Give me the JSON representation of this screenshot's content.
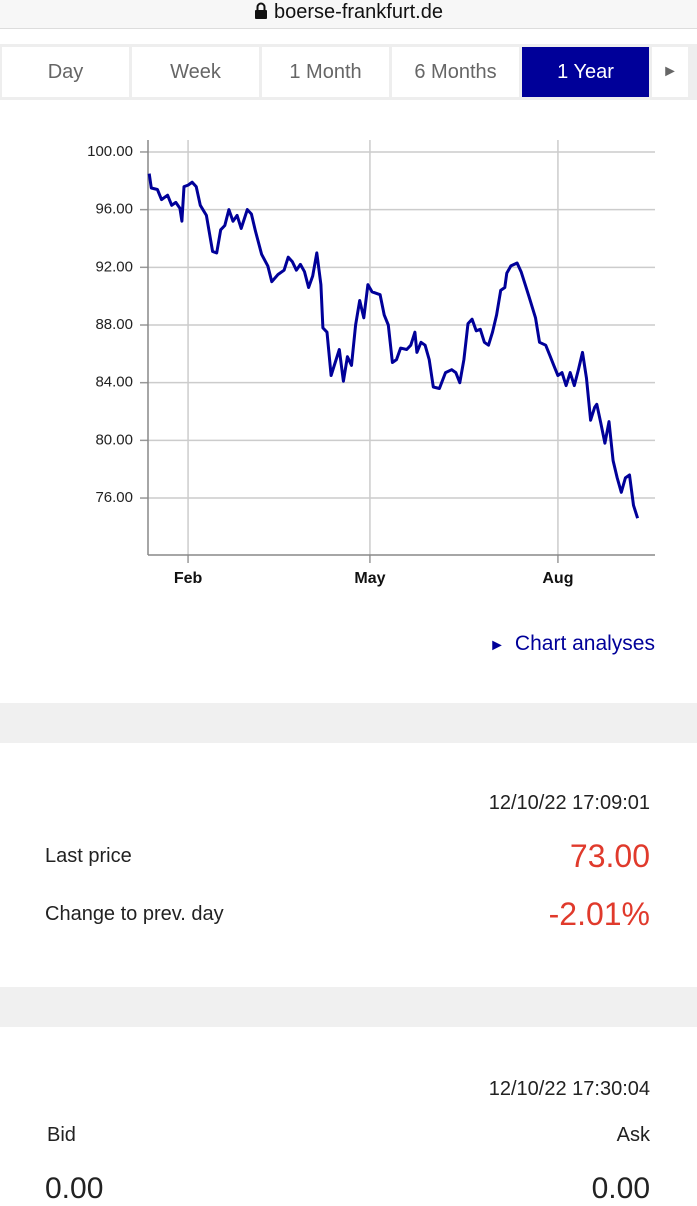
{
  "url": "boerse-frankfurt.de",
  "tabs": [
    "Day",
    "Week",
    "1 Month",
    "6 Months",
    "1 Year"
  ],
  "active_tab": 4,
  "chart_data": {
    "type": "line",
    "color": "#000099",
    "grid": true,
    "x": [
      13,
      14,
      17,
      19,
      22,
      24,
      26,
      28,
      29,
      30,
      32,
      34,
      36,
      38,
      41,
      44,
      46,
      48,
      50,
      52,
      54,
      56,
      58,
      61,
      63,
      65,
      68,
      71,
      73,
      76,
      79,
      81,
      83,
      85,
      87,
      89,
      91,
      93,
      95,
      97,
      98,
      100,
      102,
      104,
      106,
      108,
      110,
      112,
      114,
      116,
      118,
      120,
      122,
      126,
      128,
      130,
      132,
      134,
      136,
      139,
      141,
      143,
      144,
      146,
      148,
      150,
      152,
      155,
      158,
      161,
      163,
      165,
      167,
      169,
      171,
      173,
      175,
      177,
      179,
      181,
      183,
      185,
      187,
      188,
      190,
      193,
      195,
      197,
      199,
      202,
      204,
      207,
      209,
      211,
      213,
      215,
      217,
      219,
      221,
      223,
      225,
      227,
      229,
      231,
      232,
      234,
      236,
      238,
      240,
      242,
      244,
      246,
      248,
      250,
      252
    ],
    "values": [
      98.5,
      97.5,
      97.4,
      96.7,
      97.0,
      96.3,
      96.5,
      96.1,
      95.2,
      97.6,
      97.7,
      97.9,
      97.6,
      96.3,
      95.6,
      93.1,
      93.0,
      94.6,
      94.9,
      96.0,
      95.2,
      95.6,
      94.7,
      96.0,
      95.7,
      94.5,
      92.9,
      92.1,
      91.0,
      91.5,
      91.8,
      92.7,
      92.4,
      91.8,
      92.2,
      91.7,
      90.6,
      91.4,
      93.0,
      90.8,
      87.8,
      87.5,
      84.5,
      85.4,
      86.3,
      84.1,
      85.8,
      85.2,
      88.0,
      89.7,
      88.5,
      90.8,
      90.3,
      90.1,
      88.7,
      88.0,
      85.4,
      85.6,
      86.4,
      86.3,
      86.6,
      87.5,
      86.1,
      86.8,
      86.6,
      85.6,
      83.7,
      83.6,
      84.7,
      84.9,
      84.7,
      84.0,
      85.6,
      88.1,
      88.4,
      87.6,
      87.7,
      86.8,
      86.6,
      87.5,
      88.7,
      90.4,
      90.6,
      91.6,
      92.1,
      92.3,
      91.7,
      90.8,
      89.9,
      88.5,
      86.8,
      86.6,
      85.9,
      85.2,
      84.5,
      84.7,
      83.8,
      84.7,
      83.8,
      84.9,
      86.1,
      84.3,
      81.4,
      82.3,
      82.5,
      81.2,
      79.8,
      81.3,
      78.6,
      77.4,
      76.4,
      77.4,
      77.6,
      75.5,
      74.6
    ],
    "xlim": [
      12.4,
      260.5
    ],
    "xticks": [
      {
        "value": 32,
        "label": "Feb"
      },
      {
        "value": 121,
        "label": "May"
      },
      {
        "value": 213,
        "label": "Aug"
      }
    ],
    "ylim": [
      72.05,
      100.83
    ],
    "yticks": [
      {
        "value": 76,
        "label": "76.00"
      },
      {
        "value": 80,
        "label": "80.00"
      },
      {
        "value": 84,
        "label": "84.00"
      },
      {
        "value": 88,
        "label": "88.00"
      },
      {
        "value": 92,
        "label": "92.00"
      },
      {
        "value": 96,
        "label": "96.00"
      },
      {
        "value": 100,
        "label": "100.00"
      }
    ]
  },
  "chart_link": "Chart analyses",
  "quote": {
    "timestamp": "12/10/22 17:09:01",
    "last_price_label": "Last price",
    "last_price": "73.00",
    "change_label": "Change to prev. day",
    "change": "-2.01%"
  },
  "bid_ask": {
    "timestamp": "12/10/22 17:30:04",
    "bid_label": "Bid",
    "ask_label": "Ask",
    "bid": "0.00",
    "ask": "0.00"
  }
}
